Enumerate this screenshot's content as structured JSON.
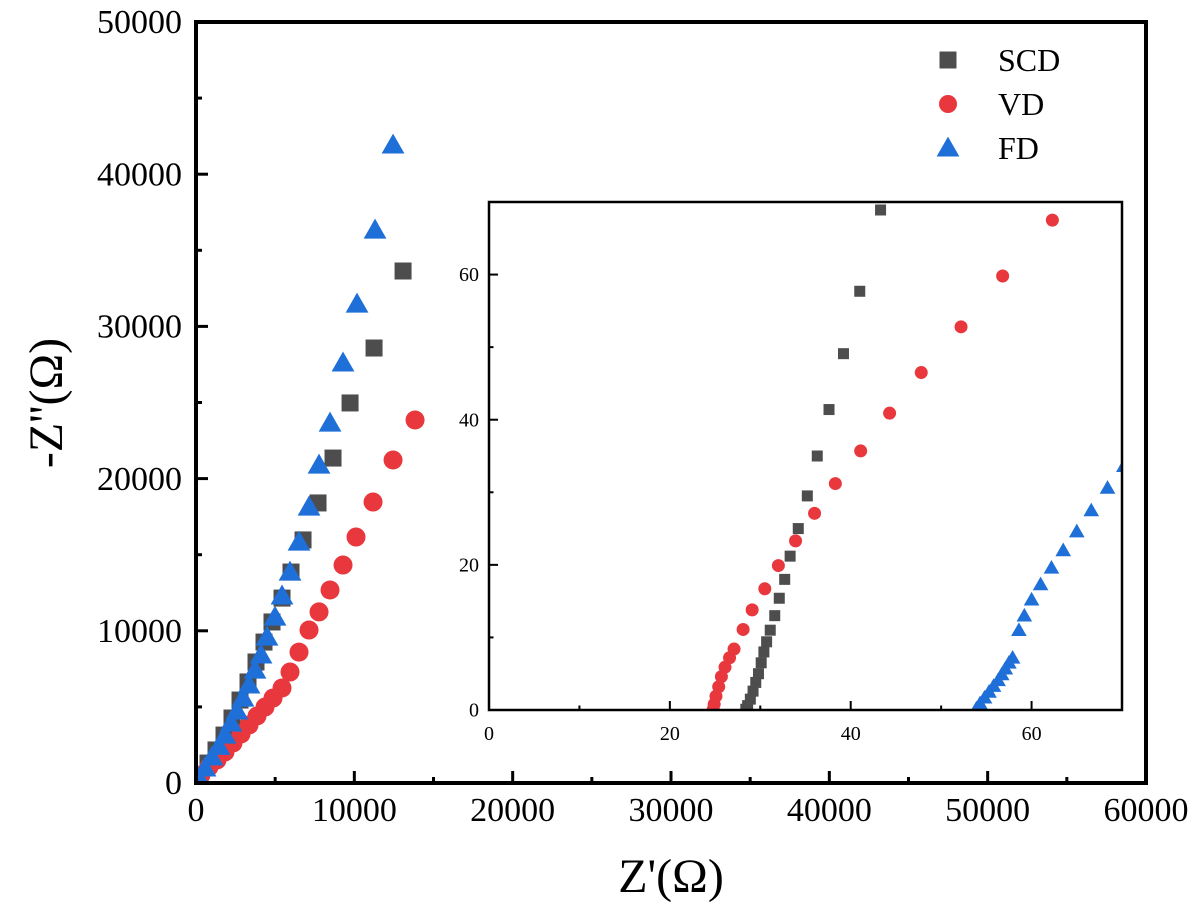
{
  "chart_data": [
    {
      "type": "scatter",
      "xlabel": "Z'(Ω)",
      "ylabel": "-Z''(Ω)",
      "xlim": [
        0,
        60000
      ],
      "ylim": [
        0,
        50000
      ],
      "xticks": [
        "0",
        "10000",
        "20000",
        "30000",
        "40000",
        "50000",
        "60000"
      ],
      "yticks": [
        "0",
        "10000",
        "20000",
        "30000",
        "40000",
        "50000"
      ],
      "grid": false,
      "legend": "top-right",
      "series": [
        {
          "name": "SCD",
          "marker": "square",
          "color": "#4d4d4d",
          "x": [
            13077,
            11245,
            9730,
            8654,
            7707,
            6760,
            6000,
            5433,
            4800,
            4295,
            3790,
            3285,
            2780,
            2274,
            1769,
            1264,
            758,
            253,
            63
          ],
          "y": [
            33640,
            28580,
            24970,
            21350,
            18400,
            15970,
            13860,
            12150,
            10580,
            9260,
            7950,
            6640,
            5450,
            4270,
            3150,
            2170,
            1310,
            530,
            130
          ]
        },
        {
          "name": "VD",
          "marker": "circle",
          "color": "#e8383d",
          "x": [
            13835,
            12445,
            11181,
            10107,
            9286,
            8465,
            7770,
            7138,
            6506,
            5938,
            5433,
            4864,
            4359,
            3853,
            3348,
            2843,
            2337,
            1832,
            1327,
            821,
            316,
            126
          ],
          "y": [
            23850,
            21220,
            18460,
            16160,
            14320,
            12680,
            11240,
            10050,
            8600,
            7290,
            6240,
            5580,
            4990,
            4400,
            3810,
            3220,
            2630,
            2040,
            1510,
            1050,
            530,
            200
          ]
        },
        {
          "name": "FD",
          "marker": "triangle",
          "color": "#1f6fd9",
          "x": [
            12445,
            11308,
            10170,
            9286,
            8465,
            7770,
            7138,
            6506,
            5938,
            5433,
            4990,
            4485,
            4106,
            3727,
            3348,
            2969,
            2590,
            2211,
            1832,
            1453,
            1011,
            569,
            190
          ],
          "y": [
            41920,
            36330,
            31470,
            27600,
            23650,
            20890,
            18130,
            15830,
            13860,
            12290,
            10900,
            9590,
            8410,
            7420,
            6440,
            5580,
            4730,
            3940,
            3150,
            2410,
            1710,
            990,
            330
          ]
        }
      ]
    },
    {
      "type": "scatter",
      "role": "inset",
      "xlim": [
        0,
        70
      ],
      "ylim": [
        0,
        70
      ],
      "xticks": [
        "0",
        "20",
        "40",
        "60"
      ],
      "yticks": [
        "0",
        "20",
        "40",
        "60"
      ],
      "grid": false,
      "series": [
        {
          "name": "SCD",
          "marker": "square",
          "color": "#4d4d4d",
          "x": [
            43.3,
            41.0,
            39.2,
            37.6,
            36.3,
            35.2,
            34.2,
            33.3,
            32.7,
            32.1,
            31.6,
            31.1,
            30.7,
            30.4,
            30.1,
            29.8,
            29.5,
            29.2,
            28.9,
            28.6,
            28.4
          ],
          "y": [
            68.9,
            57.7,
            49.1,
            41.4,
            35.0,
            29.5,
            25.0,
            21.2,
            18.0,
            15.4,
            13.0,
            11.0,
            9.4,
            8.0,
            6.5,
            5.0,
            3.8,
            2.6,
            1.5,
            0.6,
            0.1
          ]
        },
        {
          "name": "VD",
          "marker": "circle",
          "color": "#e8383d",
          "x": [
            62.3,
            56.8,
            52.2,
            47.8,
            44.3,
            41.1,
            38.3,
            36.0,
            33.9,
            32.0,
            30.5,
            29.1,
            28.1,
            27.1,
            26.6,
            26.1,
            25.7,
            25.4,
            25.1,
            24.9,
            24.8
          ],
          "y": [
            67.5,
            59.8,
            52.8,
            46.5,
            40.9,
            35.7,
            31.2,
            27.1,
            23.3,
            19.9,
            16.7,
            13.8,
            11.1,
            8.4,
            7.2,
            5.9,
            4.6,
            3.2,
            1.9,
            0.8,
            0.1
          ]
        },
        {
          "name": "FD",
          "marker": "triangle",
          "color": "#1f6fd9",
          "x": [
            70.2,
            68.4,
            66.6,
            65.0,
            63.5,
            62.2,
            61.0,
            60.0,
            59.2,
            58.6,
            57.9,
            57.5,
            57.1,
            56.7,
            56.3,
            55.8,
            55.3,
            54.8,
            54.3,
            53.9
          ],
          "y": [
            33.6,
            30.6,
            27.5,
            24.6,
            22.0,
            19.6,
            17.3,
            15.2,
            13.0,
            11.0,
            7.2,
            6.5,
            5.7,
            4.9,
            4.1,
            3.3,
            2.5,
            1.7,
            0.9,
            0.2
          ]
        }
      ]
    }
  ]
}
